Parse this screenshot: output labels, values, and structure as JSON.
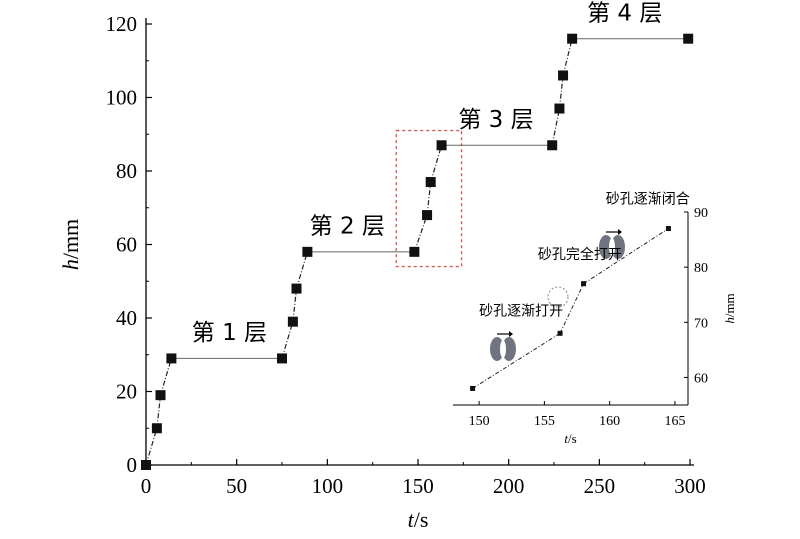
{
  "chart_data": [
    {
      "type": "line",
      "xlabel_var": "t",
      "xlabel_unit": "/s",
      "ylabel_var": "h",
      "ylabel_unit": "/mm",
      "xlim": [
        0,
        300
      ],
      "ylim": [
        0,
        120
      ],
      "xticks": [
        0,
        50,
        100,
        150,
        200,
        250,
        300
      ],
      "yticks": [
        0,
        20,
        40,
        60,
        80,
        100,
        120
      ],
      "series": [
        {
          "marker": "square",
          "color": "#111111",
          "points": [
            [
              0,
              0
            ],
            [
              6,
              10
            ],
            [
              8,
              19
            ],
            [
              14,
              29
            ],
            [
              75,
              29
            ],
            [
              81,
              39
            ],
            [
              83,
              48
            ],
            [
              89,
              58
            ],
            [
              148,
              58
            ],
            [
              155,
              68
            ],
            [
              157,
              77
            ],
            [
              163,
              87
            ],
            [
              224,
              87
            ],
            [
              228,
              97
            ],
            [
              230,
              106
            ],
            [
              235,
              116
            ],
            [
              299,
              116
            ]
          ]
        }
      ],
      "annotations": [
        {
          "text": "第 1 层",
          "x": 46,
          "y": 34
        },
        {
          "text": "第 2 层",
          "x": 111,
          "y": 63
        },
        {
          "text": "第 3 层",
          "x": 193,
          "y": 92
        },
        {
          "text": "第 4 层",
          "x": 264,
          "y": 121
        }
      ],
      "highlight_box": {
        "x": [
          138,
          174
        ],
        "y": [
          54,
          91
        ],
        "color": "#d9534f"
      }
    },
    {
      "type": "line",
      "xlabel_var": "t",
      "xlabel_unit": "/s",
      "ylabel_var": "h",
      "ylabel_unit": "/mm",
      "xlim": [
        148,
        166
      ],
      "ylim": [
        55,
        90
      ],
      "xticks": [
        150,
        155,
        160,
        165
      ],
      "yticks": [
        60,
        70,
        80,
        90
      ],
      "series": [
        {
          "marker": "square",
          "color": "#111111",
          "points": [
            [
              149.5,
              58
            ],
            [
              156.2,
              68
            ],
            [
              158.0,
              77
            ],
            [
              164.5,
              87
            ]
          ]
        }
      ],
      "annotations": [
        {
          "text": "砂孔逐渐打开",
          "x": 150,
          "y": 71.2
        },
        {
          "text": "砂孔完全打开",
          "x": 154.5,
          "y": 81.5
        },
        {
          "text": "砂孔逐渐闭合",
          "x": 159.7,
          "y": 91.5
        }
      ]
    }
  ]
}
